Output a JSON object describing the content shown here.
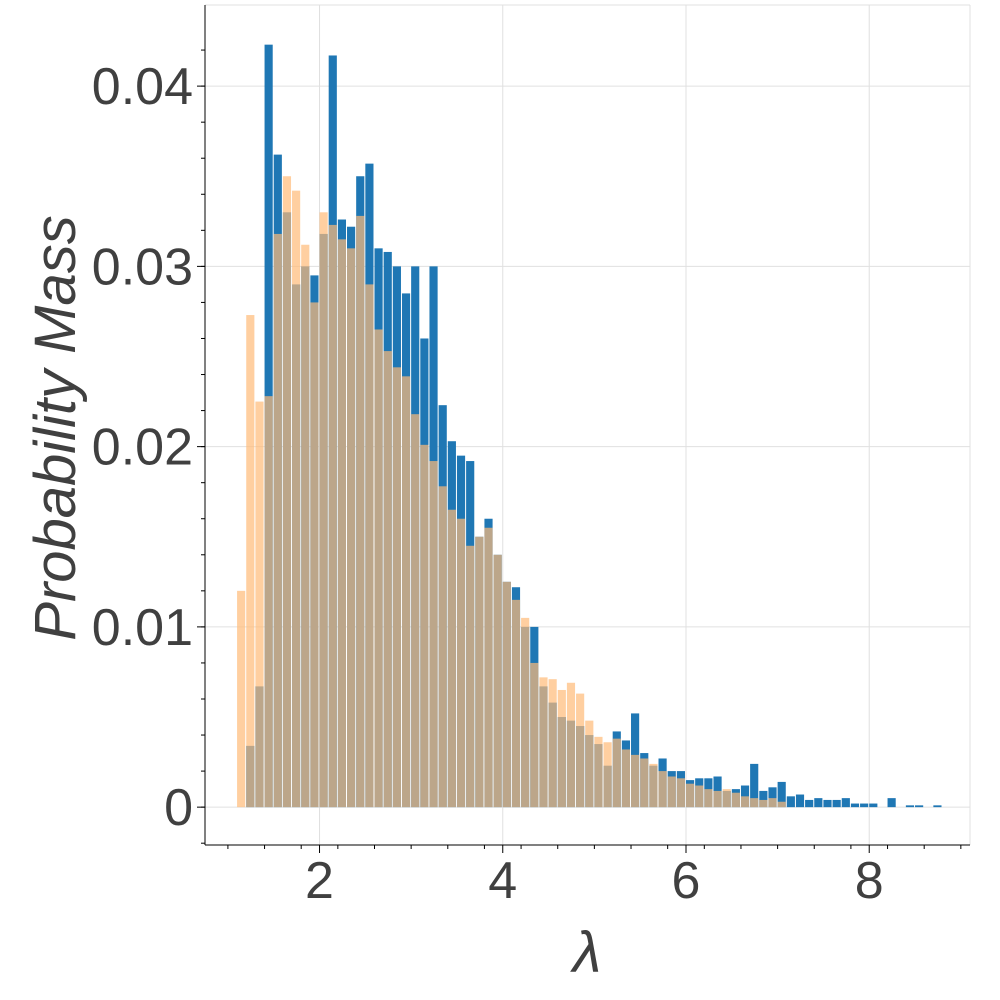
{
  "chart_data": {
    "type": "bar",
    "title": "",
    "xlabel": "λ",
    "ylabel": "Probability Mass",
    "xlim": [
      0.75,
      9.1
    ],
    "ylim": [
      -0.0021,
      0.0445
    ],
    "xticks": [
      2,
      4,
      6,
      8
    ],
    "xtick_labels": [
      "2",
      "4",
      "6",
      "8"
    ],
    "yticks": [
      0,
      0.01,
      0.02,
      0.03,
      0.04
    ],
    "ytick_labels": [
      "0",
      "0.01",
      "0.02",
      "0.03",
      "0.04"
    ],
    "grid": true,
    "legend": "none",
    "bin_width": 0.1,
    "series": [
      {
        "color": "#1f77b4",
        "opacity": 1.0,
        "bins": [
          [
            1.2,
            0.0034
          ],
          [
            1.3,
            0.0067
          ],
          [
            1.4,
            0.0423
          ],
          [
            1.5,
            0.0362
          ],
          [
            1.6,
            0.033
          ],
          [
            1.7,
            0.029
          ],
          [
            1.8,
            0.03
          ],
          [
            1.9,
            0.0295
          ],
          [
            2.0,
            0.0318
          ],
          [
            2.1,
            0.0417
          ],
          [
            2.2,
            0.0326
          ],
          [
            2.3,
            0.0322
          ],
          [
            2.4,
            0.035
          ],
          [
            2.5,
            0.0357
          ],
          [
            2.6,
            0.031
          ],
          [
            2.7,
            0.0308
          ],
          [
            2.8,
            0.03
          ],
          [
            2.9,
            0.0285
          ],
          [
            3.0,
            0.03
          ],
          [
            3.1,
            0.026
          ],
          [
            3.2,
            0.03
          ],
          [
            3.3,
            0.0223
          ],
          [
            3.4,
            0.0203
          ],
          [
            3.5,
            0.0195
          ],
          [
            3.6,
            0.0192
          ],
          [
            3.7,
            0.015
          ],
          [
            3.8,
            0.016
          ],
          [
            3.9,
            0.014
          ],
          [
            4.0,
            0.0125
          ],
          [
            4.1,
            0.0122
          ],
          [
            4.2,
            0.01
          ],
          [
            4.3,
            0.01
          ],
          [
            4.4,
            0.0067
          ],
          [
            4.5,
            0.0058
          ],
          [
            4.6,
            0.005
          ],
          [
            4.7,
            0.0048
          ],
          [
            4.8,
            0.0045
          ],
          [
            4.9,
            0.004
          ],
          [
            5.0,
            0.0035
          ],
          [
            5.1,
            0.0023
          ],
          [
            5.2,
            0.0042
          ],
          [
            5.3,
            0.0037
          ],
          [
            5.4,
            0.0052
          ],
          [
            5.5,
            0.003
          ],
          [
            5.6,
            0.0023
          ],
          [
            5.7,
            0.0027
          ],
          [
            5.8,
            0.002
          ],
          [
            5.9,
            0.002
          ],
          [
            6.0,
            0.0015
          ],
          [
            6.1,
            0.0016
          ],
          [
            6.2,
            0.0016
          ],
          [
            6.3,
            0.0017
          ],
          [
            6.4,
            0.0009
          ],
          [
            6.5,
            0.001
          ],
          [
            6.6,
            0.0012
          ],
          [
            6.7,
            0.0024
          ],
          [
            6.8,
            0.0009
          ],
          [
            6.9,
            0.0011
          ],
          [
            7.0,
            0.0014
          ],
          [
            7.1,
            0.0006
          ],
          [
            7.2,
            0.0007
          ],
          [
            7.3,
            0.0004
          ],
          [
            7.4,
            0.0005
          ],
          [
            7.5,
            0.0004
          ],
          [
            7.6,
            0.0004
          ],
          [
            7.7,
            0.0005
          ],
          [
            7.8,
            0.0002
          ],
          [
            7.9,
            0.0002
          ],
          [
            8.0,
            0.0002
          ],
          [
            8.2,
            0.0005
          ],
          [
            8.4,
            0.0001
          ],
          [
            8.5,
            0.0001
          ],
          [
            8.7,
            0.0001
          ]
        ]
      },
      {
        "color": "#ffbb78",
        "opacity": 0.7,
        "bins": [
          [
            1.1,
            0.012
          ],
          [
            1.2,
            0.0273
          ],
          [
            1.3,
            0.0225
          ],
          [
            1.4,
            0.0228
          ],
          [
            1.5,
            0.0318
          ],
          [
            1.6,
            0.035
          ],
          [
            1.7,
            0.0342
          ],
          [
            1.8,
            0.0312
          ],
          [
            1.9,
            0.028
          ],
          [
            2.0,
            0.033
          ],
          [
            2.1,
            0.0323
          ],
          [
            2.2,
            0.0315
          ],
          [
            2.3,
            0.031
          ],
          [
            2.4,
            0.0328
          ],
          [
            2.5,
            0.029
          ],
          [
            2.6,
            0.0265
          ],
          [
            2.7,
            0.0253
          ],
          [
            2.8,
            0.0244
          ],
          [
            2.9,
            0.0239
          ],
          [
            3.0,
            0.0218
          ],
          [
            3.1,
            0.0201
          ],
          [
            3.2,
            0.0192
          ],
          [
            3.3,
            0.0178
          ],
          [
            3.4,
            0.0165
          ],
          [
            3.5,
            0.016
          ],
          [
            3.6,
            0.0145
          ],
          [
            3.7,
            0.015
          ],
          [
            3.8,
            0.0155
          ],
          [
            3.9,
            0.014
          ],
          [
            4.0,
            0.0125
          ],
          [
            4.1,
            0.0115
          ],
          [
            4.2,
            0.0105
          ],
          [
            4.3,
            0.008
          ],
          [
            4.4,
            0.0072
          ],
          [
            4.5,
            0.0071
          ],
          [
            4.6,
            0.0065
          ],
          [
            4.7,
            0.0069
          ],
          [
            4.8,
            0.0063
          ],
          [
            4.9,
            0.0048
          ],
          [
            5.0,
            0.0039
          ],
          [
            5.1,
            0.0036
          ],
          [
            5.2,
            0.0038
          ],
          [
            5.3,
            0.0032
          ],
          [
            5.4,
            0.0029
          ],
          [
            5.5,
            0.0027
          ],
          [
            5.6,
            0.0024
          ],
          [
            5.7,
            0.002
          ],
          [
            5.8,
            0.0017
          ],
          [
            5.9,
            0.0016
          ],
          [
            6.0,
            0.0013
          ],
          [
            6.1,
            0.0012
          ],
          [
            6.2,
            0.001
          ],
          [
            6.3,
            0.0009
          ],
          [
            6.4,
            0.001
          ],
          [
            6.5,
            0.0008
          ],
          [
            6.6,
            0.0006
          ],
          [
            6.7,
            0.0005
          ],
          [
            6.8,
            0.0004
          ],
          [
            6.9,
            0.0005
          ],
          [
            7.0,
            0.0003
          ]
        ]
      }
    ]
  }
}
